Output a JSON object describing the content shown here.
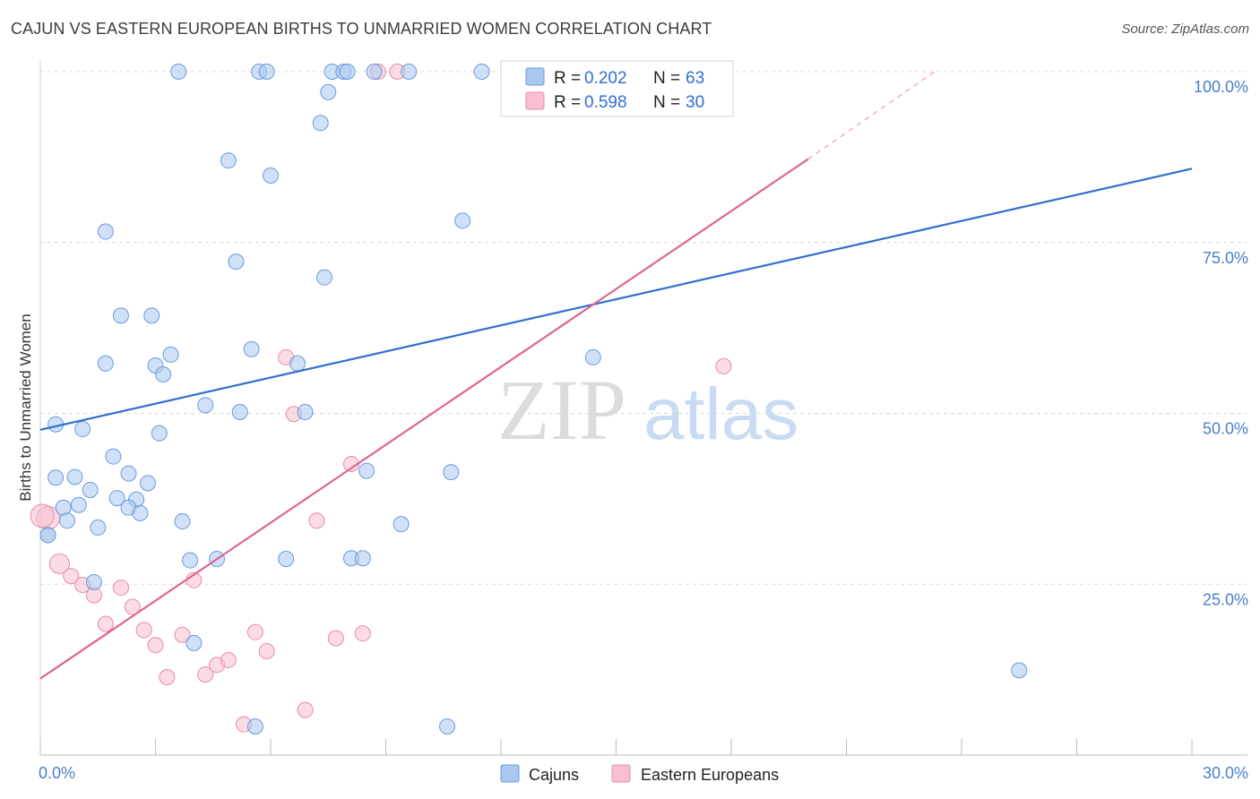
{
  "title": "CAJUN VS EASTERN EUROPEAN BIRTHS TO UNMARRIED WOMEN CORRELATION CHART",
  "source": "Source: ZipAtlas.com",
  "watermark": {
    "zip": "ZIP",
    "atlas": "atlas"
  },
  "colors": {
    "cajun_fill": "#a9c8f0",
    "cajun_stroke": "#6a9bdc",
    "cajun_line": "#2f6fd0",
    "ee_fill": "#f7bfd0",
    "ee_stroke": "#e88aa8",
    "ee_line": "#e0648f",
    "grid": "#d8d8d8",
    "axis_text": "#4a7fc8"
  },
  "legend": {
    "rows": [
      {
        "r_label": "R = ",
        "r_value": "0.202",
        "n_label": "N = ",
        "n_value": "63"
      },
      {
        "r_label": "R = ",
        "r_value": "0.598",
        "n_label": "N = ",
        "n_value": "30"
      }
    ]
  },
  "chart_data": {
    "type": "scatter",
    "title": "CAJUN VS EASTERN EUROPEAN BIRTHS TO UNMARRIED WOMEN CORRELATION CHART",
    "xlabel": "",
    "ylabel": "Births to Unmarried Women",
    "xlim": [
      0,
      30
    ],
    "ylim": [
      0,
      100
    ],
    "x_tick_labels": [
      "0.0%",
      "30.0%"
    ],
    "y_ticks": [
      25,
      50,
      75,
      100
    ],
    "y_tick_labels": [
      "25.0%",
      "50.0%",
      "75.0%",
      "100.0%"
    ],
    "grid": true,
    "legend_position": "top-center",
    "series": [
      {
        "name": "Cajuns",
        "trend": {
          "x": [
            0,
            30
          ],
          "y": [
            47.6,
            85.8
          ]
        },
        "points": [
          [
            3.6,
            100
          ],
          [
            5.7,
            100
          ],
          [
            5.9,
            100
          ],
          [
            7.6,
            100
          ],
          [
            7.9,
            100
          ],
          [
            8.0,
            100
          ],
          [
            8.7,
            100
          ],
          [
            9.6,
            100
          ],
          [
            11.5,
            100
          ],
          [
            12.5,
            100
          ],
          [
            7.3,
            92.5
          ],
          [
            4.9,
            87
          ],
          [
            6.0,
            84.8
          ],
          [
            11.0,
            78.2
          ],
          [
            1.7,
            76.6
          ],
          [
            5.1,
            72.2
          ],
          [
            7.4,
            69.9
          ],
          [
            2.1,
            64.3
          ],
          [
            2.9,
            64.3
          ],
          [
            5.5,
            59.4
          ],
          [
            3.4,
            58.6
          ],
          [
            1.7,
            57.3
          ],
          [
            3.0,
            57.0
          ],
          [
            6.7,
            57.3
          ],
          [
            14.4,
            58.2
          ],
          [
            3.2,
            55.7
          ],
          [
            4.3,
            51.2
          ],
          [
            5.2,
            50.2
          ],
          [
            6.9,
            50.2
          ],
          [
            0.4,
            48.4
          ],
          [
            1.1,
            47.7
          ],
          [
            3.1,
            47.1
          ],
          [
            1.9,
            43.7
          ],
          [
            0.4,
            40.6
          ],
          [
            0.9,
            40.7
          ],
          [
            2.3,
            41.2
          ],
          [
            8.5,
            41.6
          ],
          [
            10.7,
            41.4
          ],
          [
            2.8,
            39.8
          ],
          [
            1.3,
            38.8
          ],
          [
            2.0,
            37.6
          ],
          [
            2.5,
            37.4
          ],
          [
            0.6,
            36.2
          ],
          [
            1.0,
            36.6
          ],
          [
            2.3,
            36.2
          ],
          [
            2.6,
            35.4
          ],
          [
            0.7,
            34.3
          ],
          [
            3.7,
            34.2
          ],
          [
            9.4,
            33.8
          ],
          [
            1.5,
            33.3
          ],
          [
            0.2,
            32.2
          ],
          [
            0.2,
            32.2
          ],
          [
            3.9,
            28.5
          ],
          [
            4.6,
            28.7
          ],
          [
            6.4,
            28.7
          ],
          [
            8.1,
            28.8
          ],
          [
            8.4,
            28.8
          ],
          [
            1.4,
            25.3
          ],
          [
            4.0,
            16.4
          ],
          [
            25.5,
            12.4
          ],
          [
            5.6,
            4.2
          ],
          [
            10.6,
            4.2
          ],
          [
            7.5,
            97
          ]
        ]
      },
      {
        "name": "Eastern Europeans",
        "trend": {
          "x": [
            0,
            20
          ],
          "y": [
            11.2,
            87.2
          ]
        },
        "trend_dashed": {
          "x": [
            20,
            23.3
          ],
          "y": [
            87.2,
            100
          ]
        },
        "points": [
          [
            8.8,
            100
          ],
          [
            9.3,
            100
          ],
          [
            0.2,
            34.7
          ],
          [
            0.5,
            28.0
          ],
          [
            0.8,
            26.2
          ],
          [
            1.1,
            24.9
          ],
          [
            1.4,
            23.4
          ],
          [
            1.7,
            19.2
          ],
          [
            2.1,
            24.5
          ],
          [
            2.4,
            21.7
          ],
          [
            2.7,
            18.3
          ],
          [
            3.0,
            16.1
          ],
          [
            3.3,
            11.4
          ],
          [
            3.7,
            17.6
          ],
          [
            4.0,
            25.6
          ],
          [
            4.3,
            11.8
          ],
          [
            4.6,
            13.2
          ],
          [
            4.9,
            13.9
          ],
          [
            5.3,
            4.5
          ],
          [
            5.6,
            18.0
          ],
          [
            5.9,
            15.2
          ],
          [
            6.4,
            58.2
          ],
          [
            6.6,
            49.9
          ],
          [
            6.9,
            6.6
          ],
          [
            7.2,
            34.3
          ],
          [
            7.7,
            17.1
          ],
          [
            8.1,
            42.6
          ],
          [
            8.4,
            17.8
          ],
          [
            17.8,
            56.9
          ],
          [
            0.05,
            35.0
          ]
        ]
      }
    ],
    "bottom_legend": [
      "Cajuns",
      "Eastern Europeans"
    ]
  }
}
